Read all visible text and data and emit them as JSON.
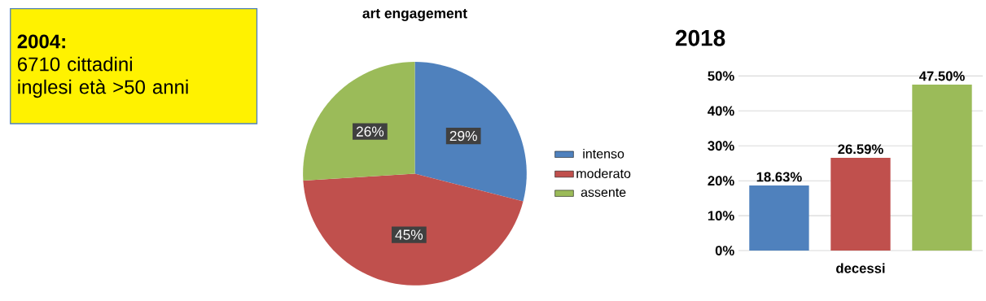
{
  "chart_data": [
    {
      "type": "other",
      "title": "2004:",
      "annotations": [
        "6710 cittadini",
        "inglesi età >50 anni"
      ]
    },
    {
      "type": "pie",
      "title": "art engagement",
      "categories": [
        "intenso",
        "moderato",
        "assente"
      ],
      "values": [
        29,
        45,
        26
      ],
      "colors": [
        "#4f81bd",
        "#c0504d",
        "#9bbb59"
      ],
      "value_labels": [
        "29%",
        "45%",
        "26%"
      ],
      "legend": "right"
    },
    {
      "type": "bar",
      "title": "2018",
      "categories": [
        null,
        "decessi",
        null
      ],
      "values": [
        18.63,
        26.59,
        47.5
      ],
      "colors": [
        "#4f81bd",
        "#c0504d",
        "#9bbb59"
      ],
      "value_labels": [
        "18.63%",
        "26.59%",
        "47.50%"
      ],
      "ylim": [
        0,
        50
      ],
      "yticks": [
        {
          "value": 0,
          "label": "0%"
        },
        {
          "value": 10,
          "label": "10%"
        },
        {
          "value": 20,
          "label": "20%"
        },
        {
          "value": 30,
          "label": "30%"
        },
        {
          "value": 40,
          "label": "40%"
        },
        {
          "value": 50,
          "label": "50%"
        }
      ],
      "grid": "y"
    }
  ]
}
